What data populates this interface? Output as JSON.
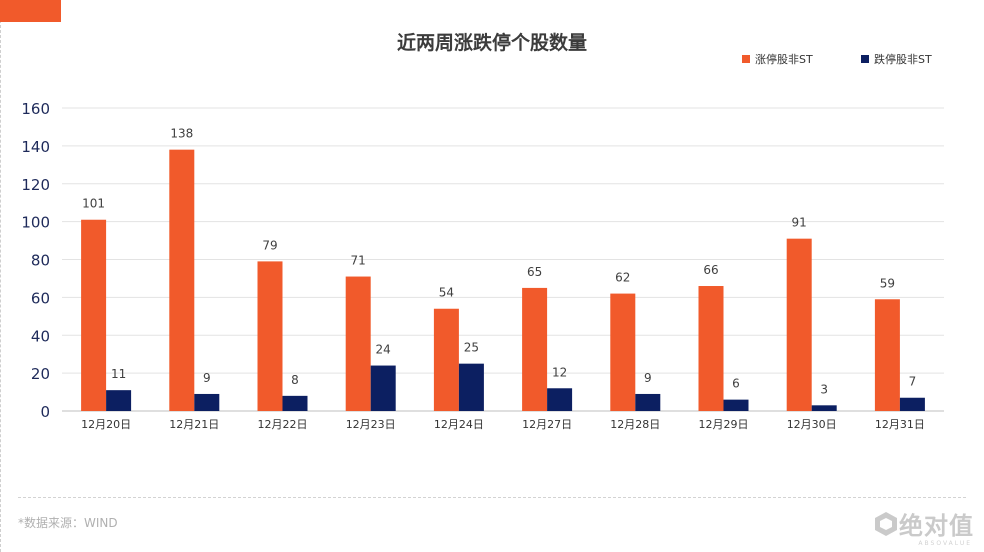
{
  "chart_data": {
    "type": "bar",
    "title": "近两周涨跌停个股数量",
    "categories": [
      "12月20日",
      "12月21日",
      "12月22日",
      "12月23日",
      "12月24日",
      "12月27日",
      "12月28日",
      "12月29日",
      "12月30日",
      "12月31日"
    ],
    "series": [
      {
        "name": "涨停股非ST",
        "color": "#f15a2b",
        "values": [
          101,
          138,
          79,
          71,
          54,
          65,
          62,
          66,
          91,
          59
        ]
      },
      {
        "name": "跌停股非ST",
        "color": "#0c1f61",
        "values": [
          11,
          9,
          8,
          24,
          25,
          12,
          9,
          6,
          3,
          7
        ]
      }
    ],
    "ylim": [
      0,
      160
    ],
    "yticks": [
      0,
      20,
      40,
      60,
      80,
      100,
      120,
      140,
      160
    ],
    "grid": true,
    "legend_position": "top-right",
    "xlabel": "",
    "ylabel": ""
  },
  "footer": {
    "source_text": "*数据来源：WIND",
    "watermark_text": "绝对值",
    "watermark_sub": "ABSOVALUE"
  },
  "colors": {
    "accent": "#f15a2b",
    "series_dark": "#0c1f61"
  }
}
